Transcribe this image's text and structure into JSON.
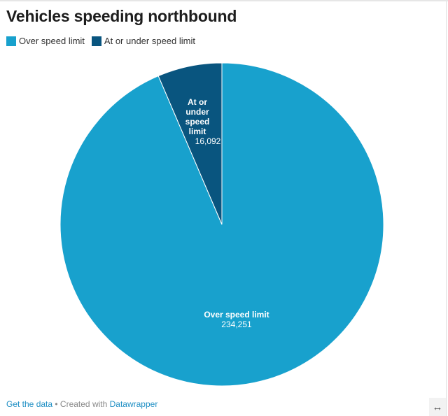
{
  "chart_data": {
    "type": "pie",
    "title": "Vehicles speeding northbound",
    "legend_position": "top-left",
    "slices": [
      {
        "label": "Over speed limit",
        "value": 234251,
        "display": "234,251",
        "color": "#18a1cd"
      },
      {
        "label": "At or under speed limit",
        "value": 16092,
        "display": "16,092",
        "color": "#09557f",
        "label_lines": [
          "At or",
          "under",
          "speed",
          "limit"
        ]
      }
    ]
  },
  "footer": {
    "get_data": "Get the data",
    "separator": " • Created with ",
    "datawrapper": "Datawrapper"
  },
  "icons": {
    "resize": "horizontal-resize-icon"
  }
}
